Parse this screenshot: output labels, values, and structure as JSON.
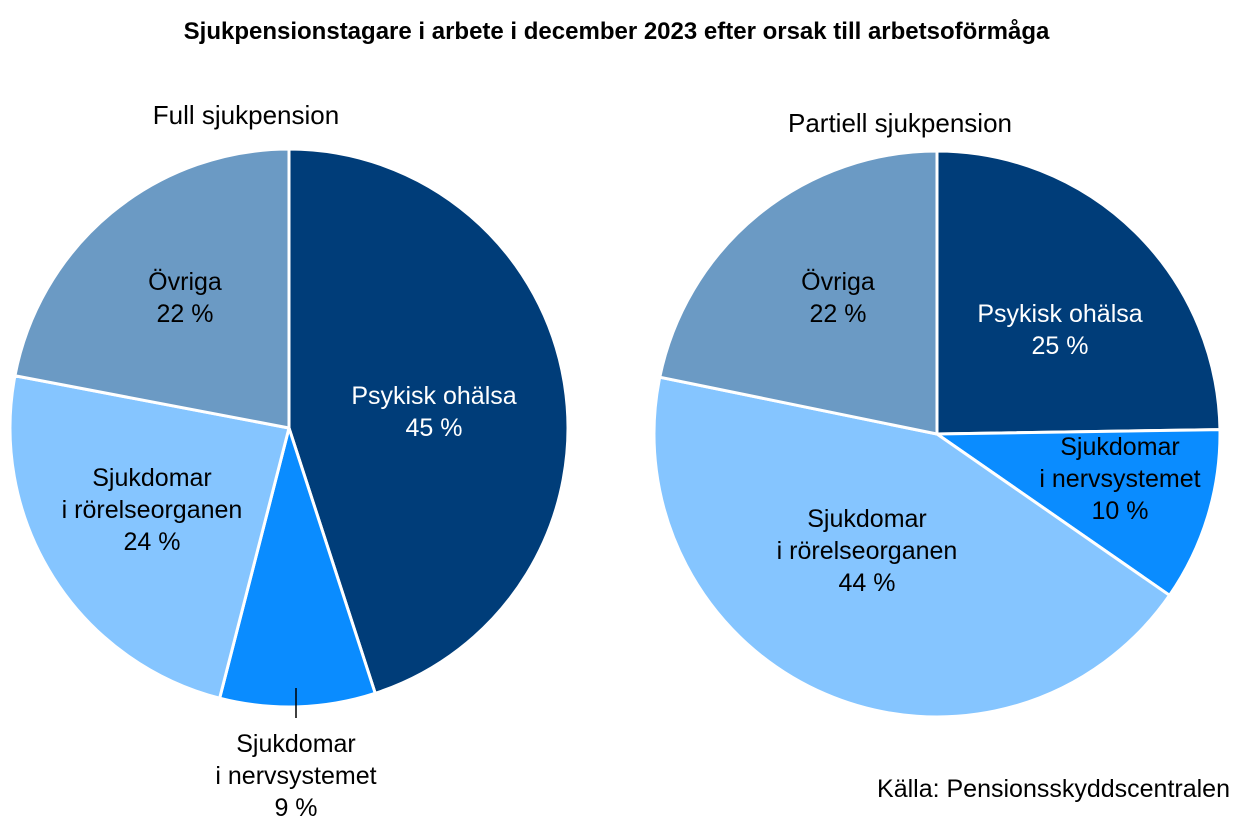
{
  "title": "Sjukpensionstagare i arbete i december 2023 efter orsak till arbetsoförmåga",
  "source": "Källa: Pensionsskyddscentralen",
  "chart_data": [
    {
      "type": "pie",
      "title": "Full sjukpension",
      "slices": [
        {
          "name": [
            "Psykisk ohälsa"
          ],
          "value": 45,
          "value_label": "45 %",
          "color": "#003d79",
          "label_color": "#ffffff"
        },
        {
          "name": [
            "Sjukdomar",
            "i nervsystemet"
          ],
          "value": 9,
          "value_label": "9 %",
          "color": "#0a8cff",
          "label_color": "#000000",
          "label_outside": true
        },
        {
          "name": [
            "Sjukdomar",
            "i rörelseorganen"
          ],
          "value": 24,
          "value_label": "24 %",
          "color": "#85c5ff",
          "label_color": "#000000"
        },
        {
          "name": [
            "Övriga"
          ],
          "value": 22,
          "value_label": "22 %",
          "color": "#6b9ac4",
          "label_color": "#000000"
        }
      ]
    },
    {
      "type": "pie",
      "title": "Partiell sjukpension",
      "slices": [
        {
          "name": [
            "Psykisk ohälsa"
          ],
          "value": 25,
          "value_label": "25 %",
          "color": "#003d79",
          "label_color": "#ffffff"
        },
        {
          "name": [
            "Sjukdomar",
            "i nervsystemet"
          ],
          "value": 10,
          "value_label": "10 %",
          "color": "#0a8cff",
          "label_color": "#000000"
        },
        {
          "name": [
            "Sjukdomar",
            "i rörelseorganen"
          ],
          "value": 44,
          "value_label": "44 %",
          "color": "#85c5ff",
          "label_color": "#000000"
        },
        {
          "name": [
            "Övriga"
          ],
          "value": 22,
          "value_label": "22 %",
          "color": "#6b9ac4",
          "label_color": "#000000"
        }
      ]
    }
  ]
}
